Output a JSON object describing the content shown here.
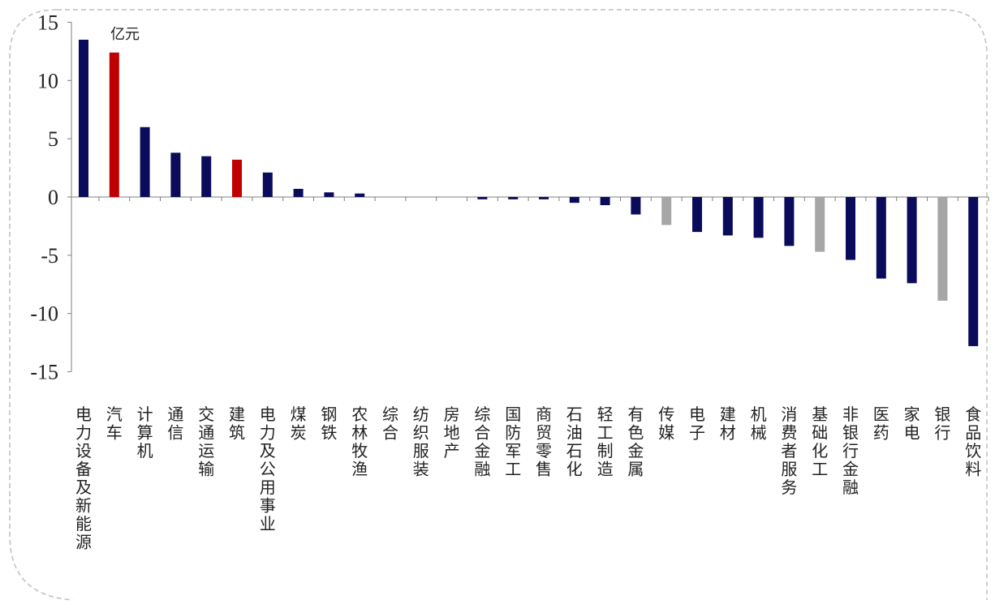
{
  "chart_data": {
    "type": "bar",
    "unit": "亿元",
    "ylim": [
      -15,
      15
    ],
    "yticks": [
      15,
      10,
      5,
      0,
      -5,
      -10,
      -15
    ],
    "ytick_labels": [
      "15",
      "10",
      "5",
      "0",
      "-5",
      "-10",
      "-15"
    ],
    "grid": false,
    "categories": [
      "电力设备及新能源",
      "汽车",
      "计算机",
      "通信",
      "交通运输",
      "建筑",
      "电力及公用事业",
      "煤炭",
      "钢铁",
      "农林牧渔",
      "综合",
      "纺织服装",
      "房地产",
      "综合金融",
      "国防军工",
      "商贸零售",
      "石油石化",
      "轻工制造",
      "有色金属",
      "传媒",
      "电子",
      "建材",
      "机械",
      "消费者服务",
      "基础化工",
      "非银行金融",
      "医药",
      "家电",
      "银行",
      "食品饮料"
    ],
    "values": [
      13.5,
      12.4,
      6.0,
      3.8,
      3.5,
      3.2,
      2.1,
      0.7,
      0.4,
      0.3,
      0.0,
      0.0,
      0.0,
      -0.2,
      -0.2,
      -0.2,
      -0.5,
      -0.7,
      -1.5,
      -2.4,
      -3.0,
      -3.3,
      -3.5,
      -4.2,
      -4.7,
      -5.4,
      -7.0,
      -7.4,
      -8.9,
      -12.8
    ],
    "colors": [
      "#0b0b5c",
      "#c00000",
      "#0b0b5c",
      "#0b0b5c",
      "#0b0b5c",
      "#c00000",
      "#0b0b5c",
      "#0b0b5c",
      "#0b0b5c",
      "#0b0b5c",
      "#0b0b5c",
      "#0b0b5c",
      "#0b0b5c",
      "#0b0b5c",
      "#0b0b5c",
      "#0b0b5c",
      "#0b0b5c",
      "#0b0b5c",
      "#0b0b5c",
      "#a6a6a6",
      "#0b0b5c",
      "#0b0b5c",
      "#0b0b5c",
      "#0b0b5c",
      "#a6a6a6",
      "#0b0b5c",
      "#0b0b5c",
      "#0b0b5c",
      "#a6a6a6",
      "#0b0b5c"
    ],
    "palette": {
      "navy": "#0b0b5c",
      "red": "#c00000",
      "gray": "#a6a6a6",
      "frame": "#bfbfbf"
    }
  }
}
